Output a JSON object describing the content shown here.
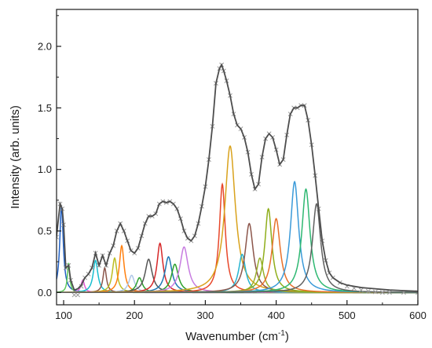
{
  "chart_data": {
    "type": "line",
    "xlabel": "Wavenumber (cm",
    "xlabel_sup": "-1",
    "xlabel_end": ")",
    "ylabel": "Intensity (arb. units)",
    "xlim": [
      90,
      600
    ],
    "ylim": [
      -0.1,
      2.3
    ],
    "xticks": [
      100,
      200,
      300,
      400,
      500,
      600
    ],
    "xtick_labels": [
      "100",
      "200",
      "300",
      "400",
      "500",
      "600"
    ],
    "yticks": [
      0.0,
      0.5,
      1.0,
      1.5,
      2.0
    ],
    "ytick_labels": [
      "0.0",
      "0.5",
      "1.0",
      "1.5",
      "2.0"
    ],
    "grid": false,
    "legend": "none",
    "measured": {
      "color": "#9a9a9a",
      "marker": "x",
      "x": [
        90,
        95,
        98,
        100,
        103,
        107,
        110,
        115,
        120,
        125,
        130,
        135,
        140,
        145,
        150,
        155,
        160,
        165,
        170,
        175,
        180,
        185,
        190,
        195,
        200,
        205,
        210,
        215,
        220,
        225,
        230,
        235,
        240,
        245,
        250,
        255,
        260,
        265,
        270,
        275,
        280,
        285,
        290,
        295,
        300,
        305,
        310,
        315,
        320,
        323,
        326,
        330,
        335,
        340,
        345,
        350,
        355,
        360,
        365,
        370,
        375,
        380,
        385,
        390,
        395,
        400,
        405,
        410,
        415,
        420,
        425,
        430,
        435,
        440,
        445,
        450,
        455,
        460,
        465,
        470,
        475,
        480,
        490,
        500,
        510,
        520,
        530,
        540,
        550,
        560,
        580,
        600
      ],
      "y": [
        0.45,
        0.72,
        0.68,
        0.55,
        0.2,
        0.22,
        0.1,
        -0.02,
        -0.02,
        0.05,
        0.12,
        0.15,
        0.2,
        0.32,
        0.22,
        0.3,
        0.22,
        0.32,
        0.38,
        0.5,
        0.56,
        0.5,
        0.42,
        0.34,
        0.32,
        0.36,
        0.46,
        0.56,
        0.62,
        0.62,
        0.64,
        0.72,
        0.74,
        0.73,
        0.74,
        0.72,
        0.68,
        0.6,
        0.5,
        0.44,
        0.42,
        0.46,
        0.56,
        0.7,
        0.86,
        1.08,
        1.35,
        1.7,
        1.82,
        1.85,
        1.8,
        1.72,
        1.6,
        1.45,
        1.36,
        1.33,
        1.26,
        1.14,
        0.96,
        0.84,
        0.88,
        1.1,
        1.25,
        1.29,
        1.26,
        1.16,
        1.04,
        1.08,
        1.28,
        1.45,
        1.5,
        1.5,
        1.52,
        1.52,
        1.4,
        1.2,
        0.95,
        0.68,
        0.42,
        0.26,
        0.16,
        0.12,
        0.08,
        0.05,
        0.035,
        0.02,
        0.01,
        0.005,
        0.0,
        0.0,
        0.0,
        0.0
      ]
    },
    "fit": {
      "color": "#4d4d4d",
      "x": [
        90,
        95,
        98,
        100,
        103,
        107,
        110,
        115,
        120,
        125,
        130,
        135,
        140,
        145,
        150,
        155,
        160,
        165,
        170,
        175,
        180,
        185,
        190,
        195,
        200,
        205,
        210,
        215,
        220,
        225,
        230,
        235,
        240,
        245,
        250,
        255,
        260,
        265,
        270,
        275,
        280,
        285,
        290,
        295,
        300,
        305,
        310,
        315,
        320,
        323,
        326,
        330,
        335,
        340,
        345,
        350,
        355,
        360,
        365,
        370,
        375,
        380,
        385,
        390,
        395,
        400,
        405,
        410,
        415,
        420,
        425,
        430,
        435,
        440,
        445,
        450,
        455,
        460,
        465,
        470,
        475,
        480,
        490,
        500,
        510,
        520,
        530,
        540,
        550,
        560,
        580,
        600
      ],
      "y": [
        0.46,
        0.72,
        0.68,
        0.55,
        0.2,
        0.22,
        0.1,
        0.02,
        0.03,
        0.06,
        0.12,
        0.15,
        0.2,
        0.32,
        0.22,
        0.3,
        0.22,
        0.32,
        0.38,
        0.5,
        0.56,
        0.5,
        0.42,
        0.34,
        0.32,
        0.36,
        0.46,
        0.56,
        0.62,
        0.62,
        0.64,
        0.72,
        0.74,
        0.73,
        0.74,
        0.72,
        0.68,
        0.6,
        0.5,
        0.44,
        0.42,
        0.46,
        0.56,
        0.7,
        0.86,
        1.08,
        1.35,
        1.7,
        1.82,
        1.85,
        1.8,
        1.72,
        1.6,
        1.45,
        1.36,
        1.33,
        1.26,
        1.14,
        0.96,
        0.84,
        0.88,
        1.1,
        1.25,
        1.29,
        1.26,
        1.16,
        1.04,
        1.08,
        1.28,
        1.45,
        1.5,
        1.5,
        1.52,
        1.52,
        1.4,
        1.2,
        0.95,
        0.68,
        0.42,
        0.26,
        0.16,
        0.12,
        0.08,
        0.06,
        0.05,
        0.04,
        0.035,
        0.03,
        0.025,
        0.02,
        0.015,
        0.01
      ]
    },
    "components": [
      {
        "center": 97,
        "height": 0.7,
        "width": 3,
        "color": "#1f5fc4"
      },
      {
        "center": 107,
        "height": 0.24,
        "width": 2,
        "color": "#5cc85a"
      },
      {
        "center": 127,
        "height": 0.1,
        "width": 3,
        "color": "#e35ad6"
      },
      {
        "center": 145,
        "height": 0.26,
        "width": 4,
        "color": "#17becf"
      },
      {
        "center": 158,
        "height": 0.2,
        "width": 3,
        "color": "#8c564b"
      },
      {
        "center": 172,
        "height": 0.28,
        "width": 4,
        "color": "#bcbd22"
      },
      {
        "center": 182,
        "height": 0.38,
        "width": 4,
        "color": "#ff7f0e"
      },
      {
        "center": 196,
        "height": 0.14,
        "width": 5,
        "color": "#aec7e8"
      },
      {
        "center": 207,
        "height": 0.12,
        "width": 5,
        "color": "#2ca02c"
      },
      {
        "center": 220,
        "height": 0.27,
        "width": 6,
        "color": "#555555"
      },
      {
        "center": 236,
        "height": 0.4,
        "width": 5,
        "color": "#d62728"
      },
      {
        "center": 248,
        "height": 0.29,
        "width": 6,
        "color": "#1f77b4"
      },
      {
        "center": 257,
        "height": 0.23,
        "width": 6,
        "color": "#2ca02c"
      },
      {
        "center": 270,
        "height": 0.37,
        "width": 7,
        "color": "#c77ce0"
      },
      {
        "center": 324,
        "height": 0.88,
        "width": 5,
        "color": "#e8472a"
      },
      {
        "center": 335,
        "height": 1.19,
        "width": 9,
        "color": "#d9a21c"
      },
      {
        "center": 352,
        "height": 0.31,
        "width": 6,
        "color": "#27b4d1"
      },
      {
        "center": 362,
        "height": 0.56,
        "width": 7,
        "color": "#8c564b"
      },
      {
        "center": 377,
        "height": 0.28,
        "width": 6,
        "color": "#9aaf2c"
      },
      {
        "center": 389,
        "height": 0.68,
        "width": 6,
        "color": "#8fae1b"
      },
      {
        "center": 400,
        "height": 0.6,
        "width": 7,
        "color": "#e8702a"
      },
      {
        "center": 426,
        "height": 0.9,
        "width": 7,
        "color": "#3a9ad9"
      },
      {
        "center": 442,
        "height": 0.84,
        "width": 7,
        "color": "#2eb872"
      },
      {
        "center": 457,
        "height": 0.72,
        "width": 7,
        "color": "#606060"
      }
    ]
  }
}
